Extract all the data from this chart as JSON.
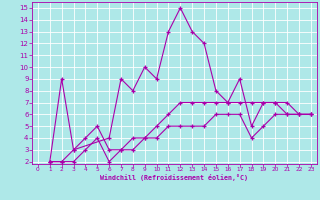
{
  "xlabel": "Windchill (Refroidissement éolien,°C)",
  "xlim": [
    -0.5,
    23.5
  ],
  "ylim": [
    1.8,
    15.5
  ],
  "yticks": [
    2,
    3,
    4,
    5,
    6,
    7,
    8,
    9,
    10,
    11,
    12,
    13,
    14,
    15
  ],
  "xticks": [
    0,
    1,
    2,
    3,
    4,
    5,
    6,
    7,
    8,
    9,
    10,
    11,
    12,
    13,
    14,
    15,
    16,
    17,
    18,
    19,
    20,
    21,
    22,
    23
  ],
  "bg_color": "#aee8e8",
  "grid_color": "#ffffff",
  "line_color": "#aa00aa",
  "lines": [
    {
      "x": [
        1,
        2,
        3,
        6,
        7,
        8,
        9,
        10,
        11,
        12,
        13,
        14,
        15,
        16,
        17,
        18,
        19,
        20,
        21,
        22,
        23
      ],
      "y": [
        2,
        9,
        3,
        4,
        9,
        8,
        10,
        9,
        13,
        15,
        13,
        12,
        8,
        7,
        9,
        5,
        7,
        7,
        6,
        6,
        6
      ]
    },
    {
      "x": [
        1,
        2,
        3,
        4,
        5,
        6,
        7,
        8,
        9,
        10,
        11,
        12,
        13,
        14,
        15,
        16,
        17,
        18,
        19,
        20,
        21,
        22,
        23
      ],
      "y": [
        2,
        2,
        3,
        4,
        5,
        3,
        3,
        4,
        4,
        5,
        6,
        7,
        7,
        7,
        7,
        7,
        7,
        7,
        7,
        7,
        7,
        6,
        6
      ]
    },
    {
      "x": [
        1,
        2,
        3,
        4,
        5,
        6,
        7,
        8,
        9,
        10,
        11,
        12,
        13,
        14,
        15,
        16,
        17,
        18,
        19,
        20,
        21,
        22,
        23
      ],
      "y": [
        2,
        2,
        2,
        3,
        4,
        2,
        3,
        3,
        4,
        4,
        5,
        5,
        5,
        5,
        6,
        6,
        6,
        4,
        5,
        6,
        6,
        6,
        6
      ]
    }
  ]
}
